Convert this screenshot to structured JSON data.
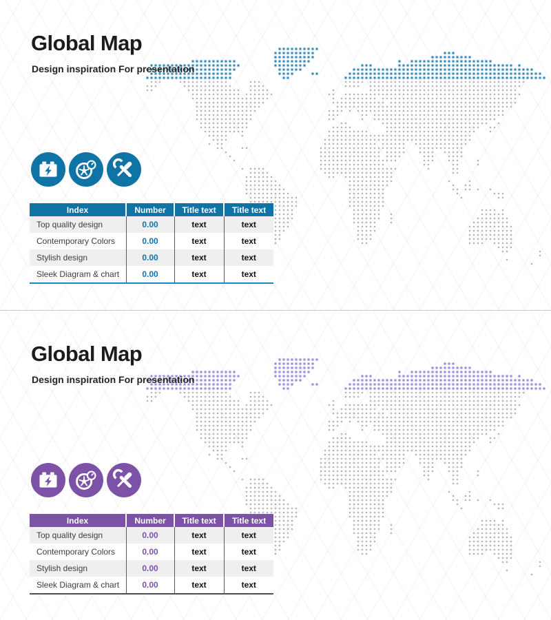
{
  "slides": [
    {
      "title": "Global Map",
      "subtitle": "Design inspiration For presentation",
      "accent": "#0f73a5",
      "map": {
        "dot_color": "#9d9d9d",
        "accent_dot_color": "#1576a8"
      },
      "icons": [
        {
          "name": "battery-charging-icon"
        },
        {
          "name": "wheel-gauge-icon"
        },
        {
          "name": "tools-icon"
        }
      ],
      "table": {
        "headers": [
          "Index",
          "Number",
          "Title text",
          "Title text"
        ],
        "rows": [
          {
            "index": "Top quality design",
            "number": "0.00",
            "title1": "text",
            "title2": "text"
          },
          {
            "index": "Contemporary Colors",
            "number": "0.00",
            "title1": "text",
            "title2": "text"
          },
          {
            "index": "Stylish design",
            "number": "0.00",
            "title1": "text",
            "title2": "text"
          },
          {
            "index": "Sleek Diagram & chart",
            "number": "0.00",
            "title1": "text",
            "title2": "text"
          }
        ],
        "bottom_border_color": "#1e85b8"
      }
    },
    {
      "title": "Global Map",
      "subtitle": "Design inspiration For presentation",
      "accent": "#7c52a6",
      "map": {
        "dot_color": "#9d9d9d",
        "accent_dot_color": "#867cd1"
      },
      "icons": [
        {
          "name": "battery-charging-icon"
        },
        {
          "name": "wheel-gauge-icon"
        },
        {
          "name": "tools-icon"
        }
      ],
      "table": {
        "headers": [
          "Index",
          "Number",
          "Title text",
          "Title text"
        ],
        "rows": [
          {
            "index": "Top quality design",
            "number": "0.00",
            "title1": "text",
            "title2": "text"
          },
          {
            "index": "Contemporary Colors",
            "number": "0.00",
            "title1": "text",
            "title2": "text"
          },
          {
            "index": "Stylish design",
            "number": "0.00",
            "title1": "text",
            "title2": "text"
          },
          {
            "index": "Sleek Diagram & chart",
            "number": "0.00",
            "title1": "text",
            "title2": "text"
          }
        ],
        "bottom_border_color": "#4f4e56"
      }
    }
  ]
}
